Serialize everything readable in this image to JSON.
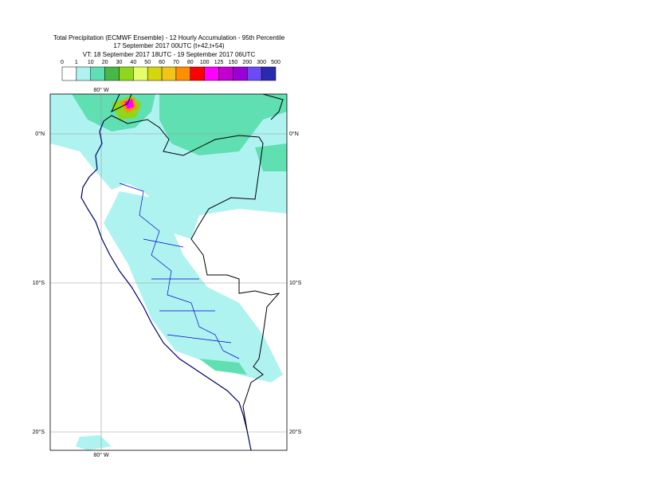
{
  "header": {
    "lines": [
      "Total Precipitation (ECMWF Ensemble) - 12 Hourly Accumulation - 95th Percentile",
      "17 September 2017 00UTC (t+42,t+54)",
      "VT: 18 September 2017 18UTC - 19 September 2017 06UTC"
    ]
  },
  "legend": {
    "thresholds": [
      0,
      1,
      10,
      20,
      30,
      40,
      50,
      60,
      70,
      80,
      100,
      125,
      150,
      200,
      300,
      500
    ],
    "colors": [
      "#ffffff",
      "#aef3f0",
      "#5fdfb2",
      "#47b846",
      "#8fd71c",
      "#e5ff6b",
      "#d6d60f",
      "#f2c419",
      "#ff8f00",
      "#ff0000",
      "#ff00ff",
      "#c300d0",
      "#9a00d6",
      "#6a4bf5",
      "#2a2ab0",
      "#0d0d55"
    ]
  },
  "map": {
    "lon_labels": [
      "80° W",
      "80° W"
    ],
    "lat_labels": [
      "0°N",
      "0°N",
      "10°S",
      "10°S",
      "20°S",
      "20°S"
    ]
  }
}
